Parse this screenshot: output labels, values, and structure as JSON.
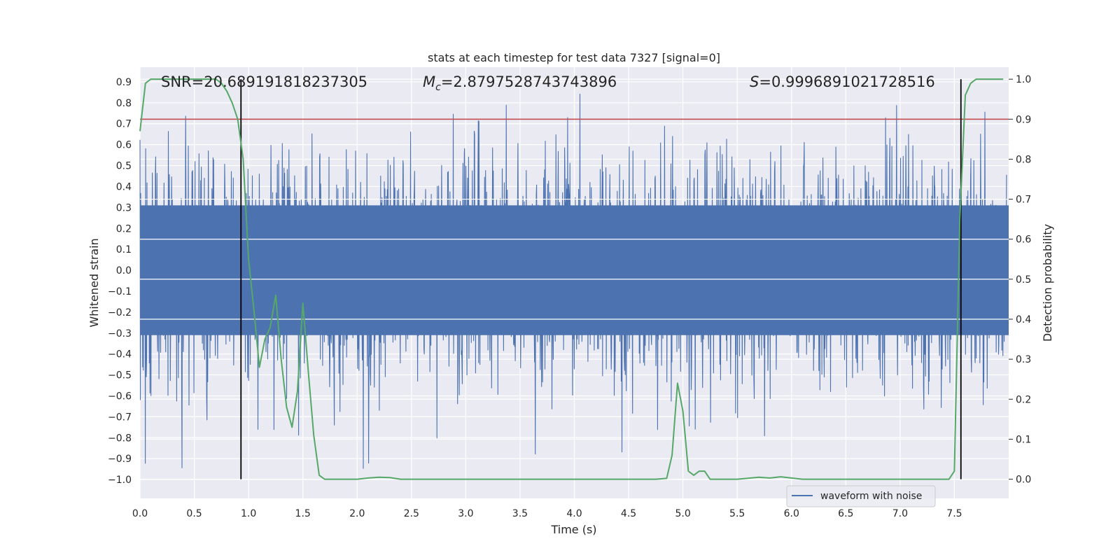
{
  "chart_data": {
    "type": "line",
    "title": "stats at each timestep for test data 7327 [signal=0]",
    "xlabel": "Time (s)",
    "ylabel": "Whitened strain",
    "y2label": "Detection probability",
    "xlim": [
      0.0,
      8.0
    ],
    "ylim": [
      -1.09,
      0.97
    ],
    "y2lim": [
      -0.048,
      1.03
    ],
    "x_ticks": [
      "0.0",
      "0.5",
      "1.0",
      "1.5",
      "2.0",
      "2.5",
      "3.0",
      "3.5",
      "4.0",
      "4.5",
      "5.0",
      "5.5",
      "6.0",
      "6.5",
      "7.0",
      "7.5"
    ],
    "y_ticks": [
      "0.9",
      "0.8",
      "0.7",
      "0.6",
      "0.5",
      "0.4",
      "0.3",
      "0.2",
      "0.1",
      "0.0",
      "−0.1",
      "−0.2",
      "−0.3",
      "−0.4",
      "−0.5",
      "−0.6",
      "−0.7",
      "−0.8",
      "−0.9",
      "−1.0"
    ],
    "y2_ticks": [
      "1.0",
      "0.9",
      "0.8",
      "0.7",
      "0.6",
      "0.5",
      "0.4",
      "0.3",
      "0.2",
      "0.1",
      "0.0"
    ],
    "annotations": {
      "snr": "SNR=20.689191818237305",
      "mc_symbol": "M",
      "mc_sub": "c",
      "mc_value": "=2.8797528743743896",
      "s_symbol": "S",
      "s_value": "=0.9996891021728516"
    },
    "legend": {
      "label": "waveform with noise",
      "placement": "lower right"
    },
    "grid": true,
    "threshold_line": {
      "axis": "right",
      "value": 0.9,
      "color": "#c44e52"
    },
    "vertical_lines": [
      0.93,
      7.56
    ],
    "series": [
      {
        "name": "waveform with noise",
        "axis": "left",
        "color": "#4c72b0",
        "style": "dense noise waveform",
        "core_amplitude": 0.31,
        "upper_envelope_max": 0.88,
        "lower_envelope_min": -0.95
      },
      {
        "axis": "right",
        "color": "#55a868",
        "x": [
          0.0,
          0.05,
          0.1,
          0.2,
          0.3,
          0.4,
          0.5,
          0.6,
          0.7,
          0.75,
          0.8,
          0.85,
          0.9,
          0.95,
          1.0,
          1.05,
          1.1,
          1.15,
          1.2,
          1.25,
          1.3,
          1.35,
          1.4,
          1.45,
          1.5,
          1.55,
          1.6,
          1.65,
          1.7,
          1.8,
          1.9,
          2.0,
          2.1,
          2.2,
          2.3,
          2.4,
          2.5,
          2.75,
          3.0,
          3.5,
          4.0,
          4.5,
          4.75,
          4.85,
          4.9,
          4.95,
          5.0,
          5.05,
          5.1,
          5.15,
          5.2,
          5.25,
          5.3,
          5.35,
          5.5,
          5.7,
          5.8,
          5.9,
          6.0,
          6.1,
          6.3,
          6.5,
          6.7,
          6.9,
          7.1,
          7.3,
          7.4,
          7.45,
          7.5,
          7.55,
          7.6,
          7.65,
          7.7,
          7.75,
          7.8,
          7.95
        ],
        "values": [
          0.87,
          0.99,
          1.0,
          1.0,
          1.0,
          1.0,
          1.0,
          1.0,
          1.0,
          0.99,
          0.97,
          0.94,
          0.9,
          0.8,
          0.55,
          0.42,
          0.28,
          0.35,
          0.38,
          0.46,
          0.3,
          0.18,
          0.13,
          0.22,
          0.44,
          0.27,
          0.11,
          0.01,
          0.0,
          0.0,
          0.0,
          0.0,
          0.003,
          0.005,
          0.004,
          0.0,
          0.0,
          0.0,
          0.0,
          0.0,
          0.0,
          0.0,
          0.0,
          0.002,
          0.06,
          0.24,
          0.17,
          0.02,
          0.01,
          0.02,
          0.02,
          0.0,
          0.0,
          0.0,
          0.0,
          0.005,
          0.003,
          0.006,
          0.003,
          0.0,
          0.0,
          0.0,
          0.0,
          0.0,
          0.0,
          0.0,
          0.0,
          0.0,
          0.02,
          0.65,
          0.96,
          0.99,
          1.0,
          1.0,
          1.0,
          1.0
        ]
      }
    ]
  }
}
